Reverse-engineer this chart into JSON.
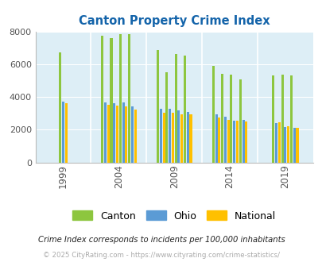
{
  "title": "Canton Property Crime Index",
  "title_color": "#1464aa",
  "subtitle": "Crime Index corresponds to incidents per 100,000 inhabitants",
  "footer": "© 2025 CityRating.com - https://www.cityrating.com/crime-statistics/",
  "groups": [
    {
      "label": 1999,
      "canton": [
        6700
      ],
      "ohio": [
        3700
      ],
      "national": [
        3600
      ]
    },
    {
      "label": 2004,
      "canton": [
        7750,
        7600,
        7850,
        7850
      ],
      "ohio": [
        3650,
        3600,
        3650,
        3400
      ],
      "national": [
        3500,
        3450,
        3400,
        3250
      ]
    },
    {
      "label": 2009,
      "canton": [
        6850,
        5500,
        6600,
        6550
      ],
      "ohio": [
        3300,
        3300,
        3200,
        3100
      ],
      "national": [
        3050,
        3050,
        2950,
        2950
      ]
    },
    {
      "label": 2014,
      "canton": [
        5900,
        5400,
        5350,
        5050
      ],
      "ohio": [
        2950,
        2800,
        2550,
        2600
      ],
      "national": [
        2750,
        2600,
        2550,
        2500
      ]
    },
    {
      "label": 2019,
      "canton": [
        5300,
        5350,
        5300
      ],
      "ohio": [
        2400,
        2150,
        2100
      ],
      "national": [
        2450,
        2200,
        2100
      ]
    }
  ],
  "canton_color": "#8dc63f",
  "ohio_color": "#5b9bd5",
  "national_color": "#ffc000",
  "bg_color": "#ddeef6",
  "ylim": [
    0,
    8000
  ],
  "yticks": [
    0,
    2000,
    4000,
    6000,
    8000
  ],
  "x_tick_labels": [
    "1999",
    "2004",
    "2009",
    "2014",
    "2019"
  ]
}
